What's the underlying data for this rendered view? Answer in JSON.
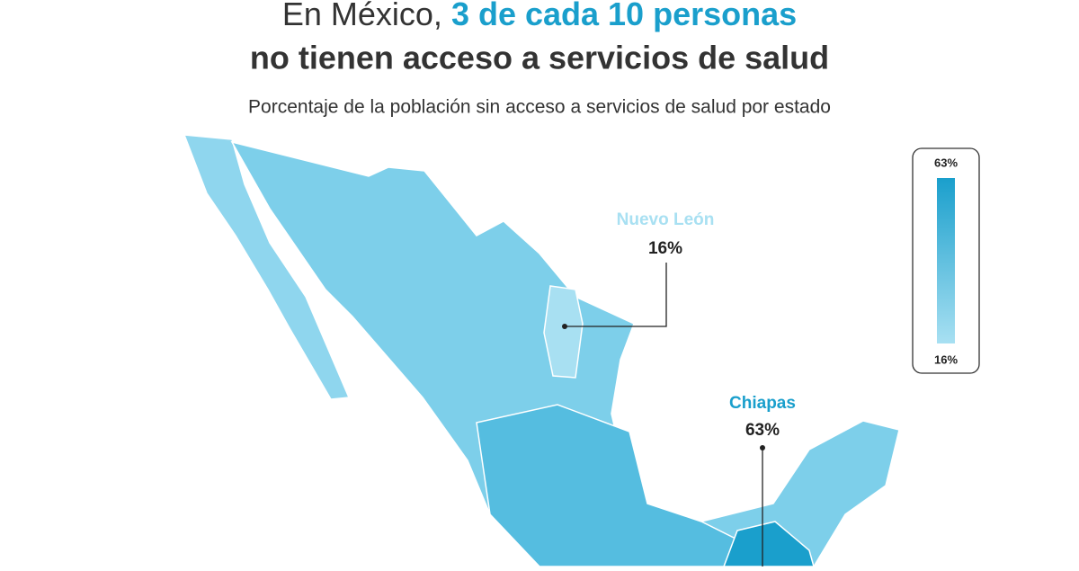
{
  "header": {
    "title_lead": "En México,",
    "title_highlight": "3 de cada 10 personas",
    "title_line2": "no tienen acceso a servicios de salud",
    "subtitle": "Porcentaje de la población sin acceso a servicios de salud por estado"
  },
  "legend": {
    "max": 63,
    "max_label": "63%",
    "min": 16,
    "min_label": "16%",
    "max_color": "#1a9fcc",
    "min_color": "#a8e0f2"
  },
  "callouts": [
    {
      "name": "Nuevo León",
      "value": 16,
      "value_label": "16%"
    },
    {
      "name": "Chiapas",
      "value": 63,
      "value_label": "63%"
    }
  ]
}
